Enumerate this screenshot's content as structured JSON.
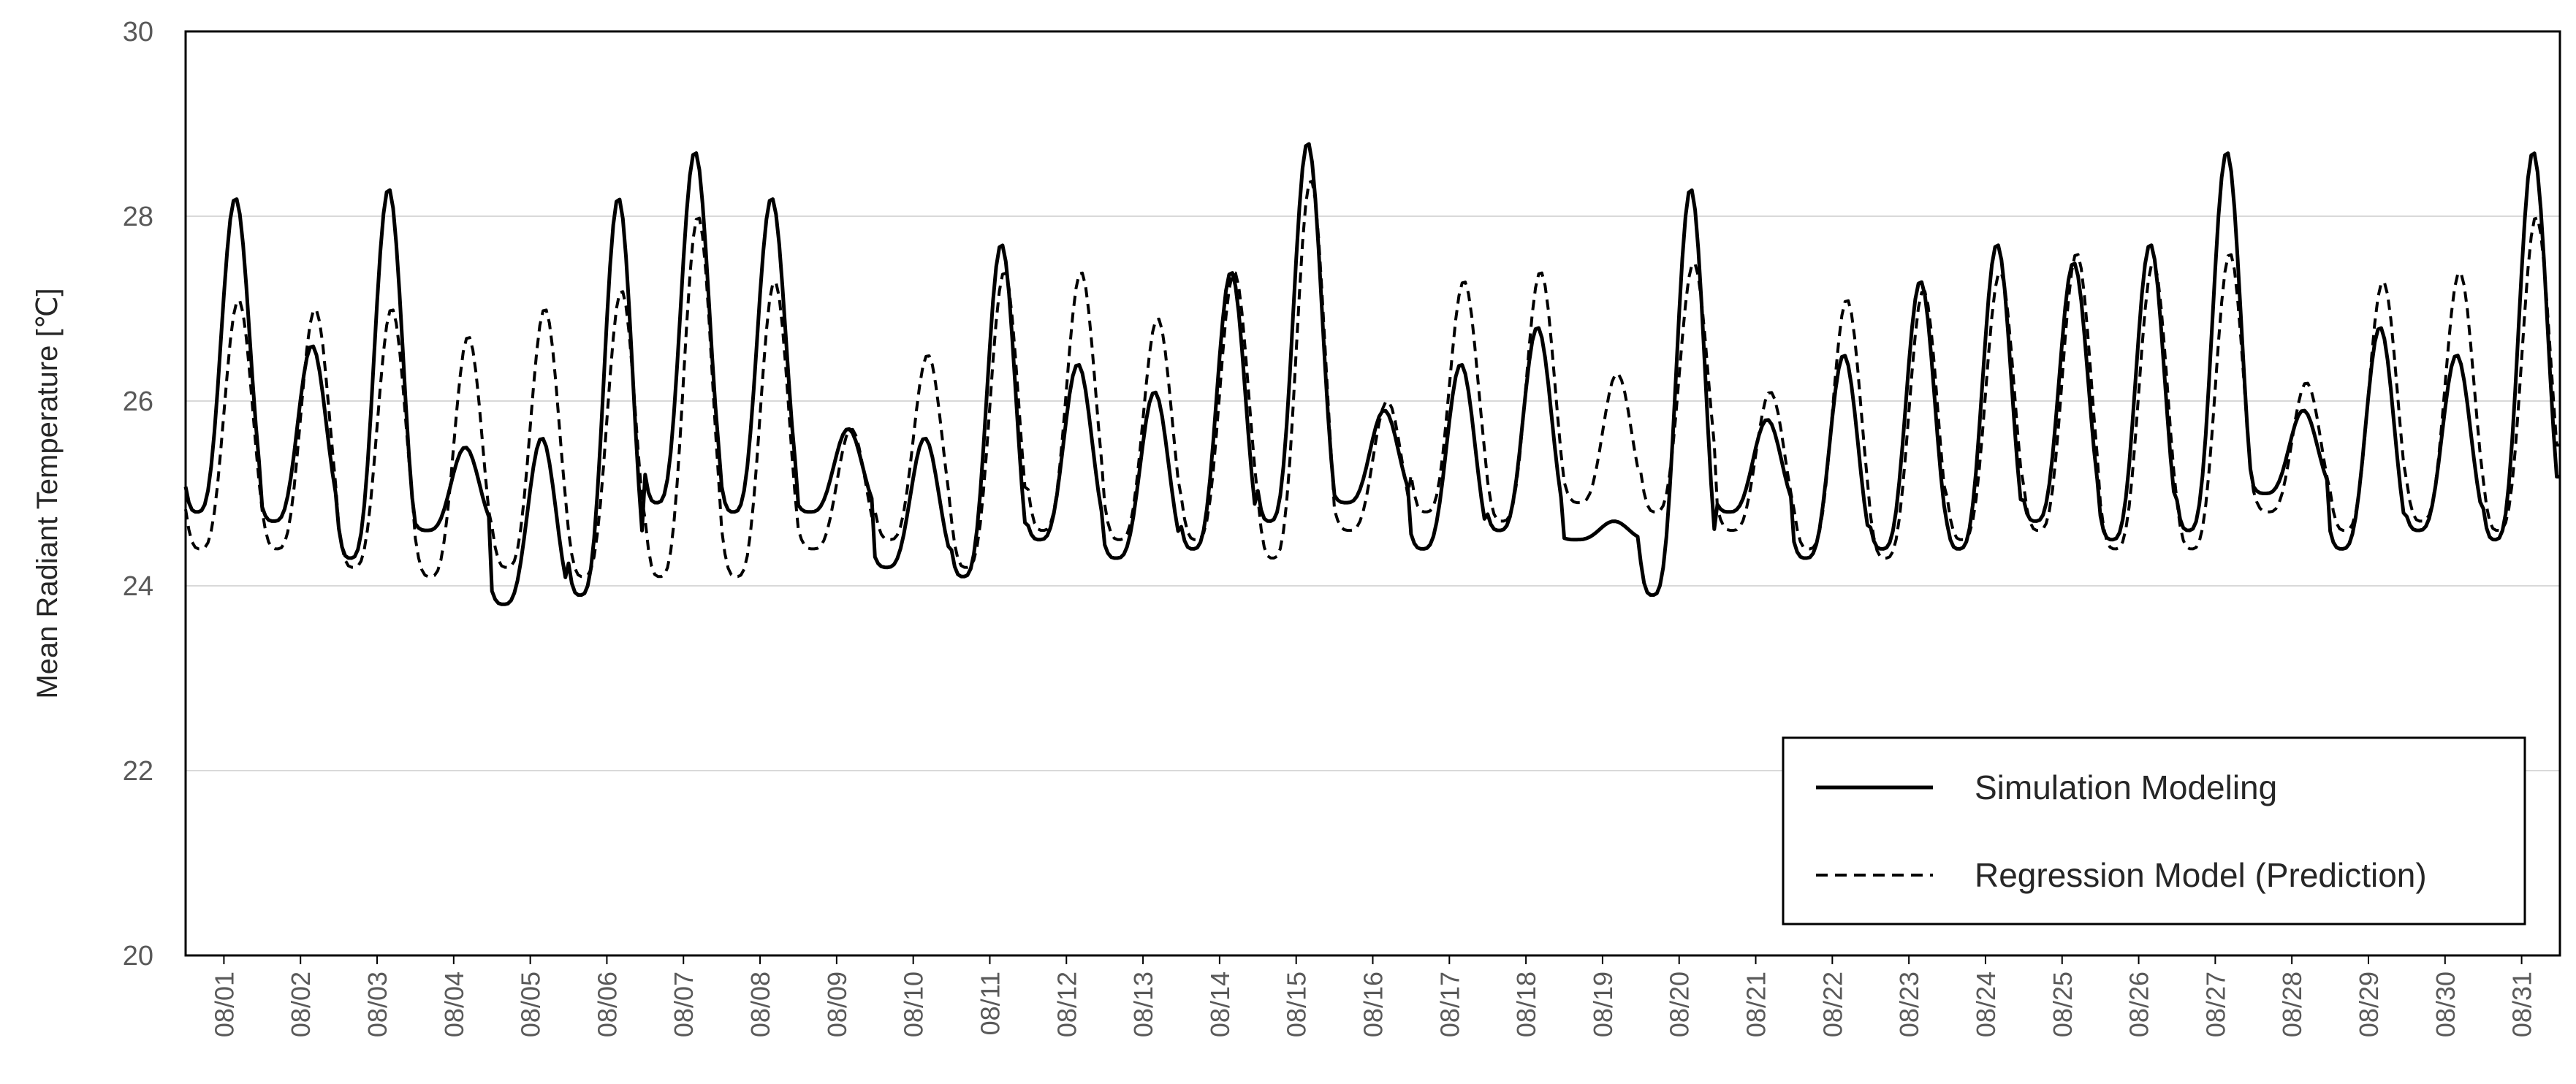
{
  "chart_data": {
    "type": "line",
    "title": "",
    "xlabel": "",
    "ylabel": "Mean Radiant Temperature [℃]",
    "ylim": [
      20,
      30
    ],
    "yticks": [
      "20",
      "22",
      "24",
      "26",
      "28",
      "30"
    ],
    "grid": "horizontal",
    "legend_position": "bottom-right",
    "colors": {
      "simulation": "#000000",
      "regression": "#000000",
      "grid": "#d9d9d9"
    },
    "categories": [
      "08/01",
      "08/02",
      "08/03",
      "08/04",
      "08/05",
      "08/06",
      "08/07",
      "08/08",
      "08/09",
      "08/10",
      "08/11",
      "08/12",
      "08/13",
      "08/14",
      "08/15",
      "08/16",
      "08/17",
      "08/18",
      "08/19",
      "08/20",
      "08/21",
      "08/22",
      "08/23",
      "08/24",
      "08/25",
      "08/26",
      "08/27",
      "08/28",
      "08/29",
      "08/30",
      "08/31"
    ],
    "series": [
      {
        "name": "Simulation Modeling",
        "style": "solid",
        "min": [
          24.8,
          24.7,
          24.3,
          24.6,
          23.8,
          23.9,
          24.9,
          24.8,
          24.8,
          24.2,
          24.1,
          24.5,
          24.3,
          24.4,
          24.7,
          24.9,
          24.4,
          24.6,
          24.5,
          23.9,
          24.8,
          24.3,
          24.4,
          24.4,
          24.7,
          24.5,
          24.6,
          25.0,
          24.4,
          24.6,
          24.5
        ],
        "max": [
          28.2,
          26.6,
          28.3,
          25.5,
          25.6,
          28.2,
          28.7,
          28.2,
          25.7,
          25.6,
          27.7,
          26.4,
          26.1,
          27.4,
          28.8,
          25.9,
          26.4,
          26.8,
          24.7,
          28.3,
          25.8,
          26.5,
          27.3,
          27.7,
          27.5,
          27.7,
          28.7,
          25.9,
          26.8,
          26.5,
          28.7
        ]
      },
      {
        "name": "Regression Model (Prediction)",
        "style": "dashed",
        "min": [
          24.4,
          24.4,
          24.2,
          24.1,
          24.2,
          24.1,
          24.1,
          24.1,
          24.4,
          24.5,
          24.2,
          24.6,
          24.5,
          24.5,
          24.3,
          24.6,
          24.8,
          24.7,
          24.9,
          24.8,
          24.6,
          24.4,
          24.3,
          24.5,
          24.6,
          24.4,
          24.4,
          24.8,
          24.6,
          24.7,
          24.6
        ],
        "max": [
          27.1,
          27.0,
          27.0,
          26.7,
          27.0,
          27.2,
          28.0,
          27.3,
          25.7,
          26.5,
          27.4,
          27.4,
          26.9,
          27.4,
          28.4,
          26.0,
          27.3,
          27.4,
          26.3,
          27.5,
          26.1,
          27.1,
          27.2,
          27.4,
          27.6,
          27.5,
          27.6,
          26.2,
          27.3,
          27.4,
          28.0
        ]
      }
    ]
  }
}
